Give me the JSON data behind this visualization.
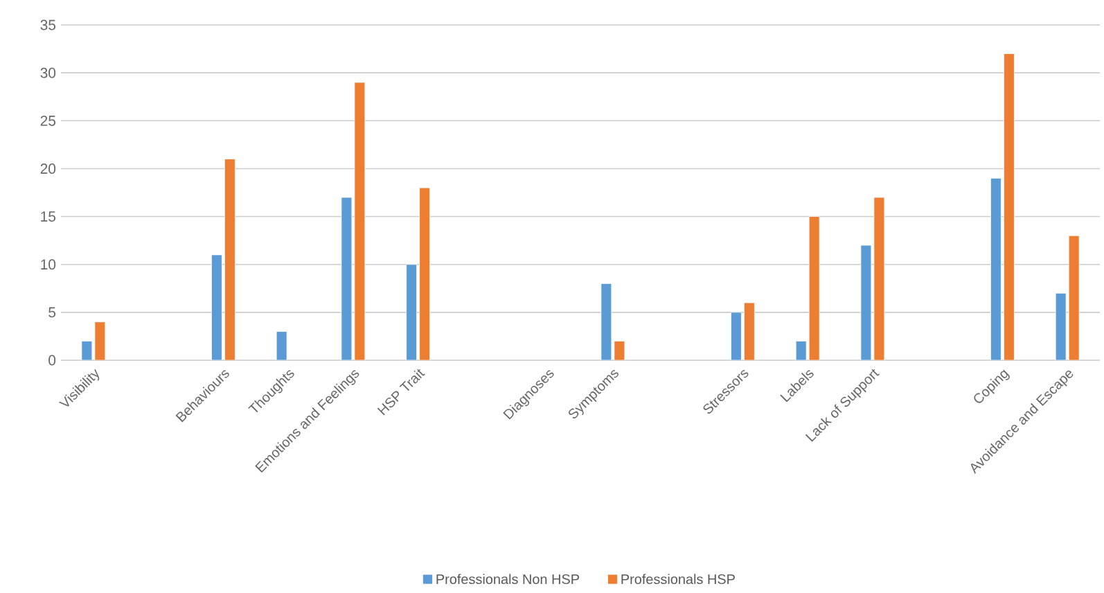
{
  "chart_data": {
    "type": "bar",
    "categories": [
      "Visibility",
      null,
      "Behaviours",
      "Thoughts",
      "Emotions and Feelings",
      "HSP Trait",
      null,
      "Diagnoses",
      "Symptoms",
      null,
      "Stressors",
      "Labels",
      "Lack of Support",
      null,
      "Coping",
      "Avoidance and Escape"
    ],
    "series": [
      {
        "name": "Professionals Non HSP",
        "color": "#5b9bd5",
        "values": [
          2,
          null,
          11,
          3,
          17,
          10,
          null,
          null,
          8,
          null,
          5,
          2,
          12,
          null,
          19,
          7
        ]
      },
      {
        "name": "Professionals HSP",
        "color": "#ed7d31",
        "values": [
          4,
          null,
          21,
          null,
          29,
          18,
          null,
          null,
          2,
          null,
          6,
          15,
          17,
          null,
          32,
          13
        ]
      }
    ],
    "ylim": [
      0,
      35
    ],
    "yticks": [
      0,
      5,
      10,
      15,
      20,
      25,
      30,
      35
    ],
    "grid": "y",
    "legend": "bottom"
  }
}
